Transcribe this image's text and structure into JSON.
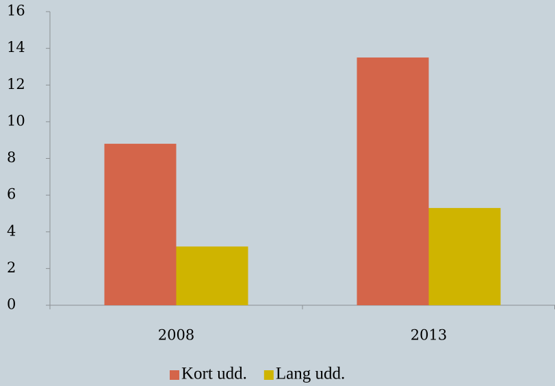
{
  "chart_data": {
    "type": "bar",
    "categories": [
      "2008",
      "2013"
    ],
    "series": [
      {
        "name": "Kort udd.",
        "color": "#d4654a",
        "values": [
          8.8,
          13.5
        ]
      },
      {
        "name": "Lang udd.",
        "color": "#cfb400",
        "values": [
          3.2,
          5.3
        ]
      }
    ],
    "ylim": [
      0,
      16
    ],
    "yticks": [
      0,
      2,
      4,
      6,
      8,
      10,
      12,
      14,
      16
    ],
    "grid": false,
    "legend": "bottom"
  }
}
